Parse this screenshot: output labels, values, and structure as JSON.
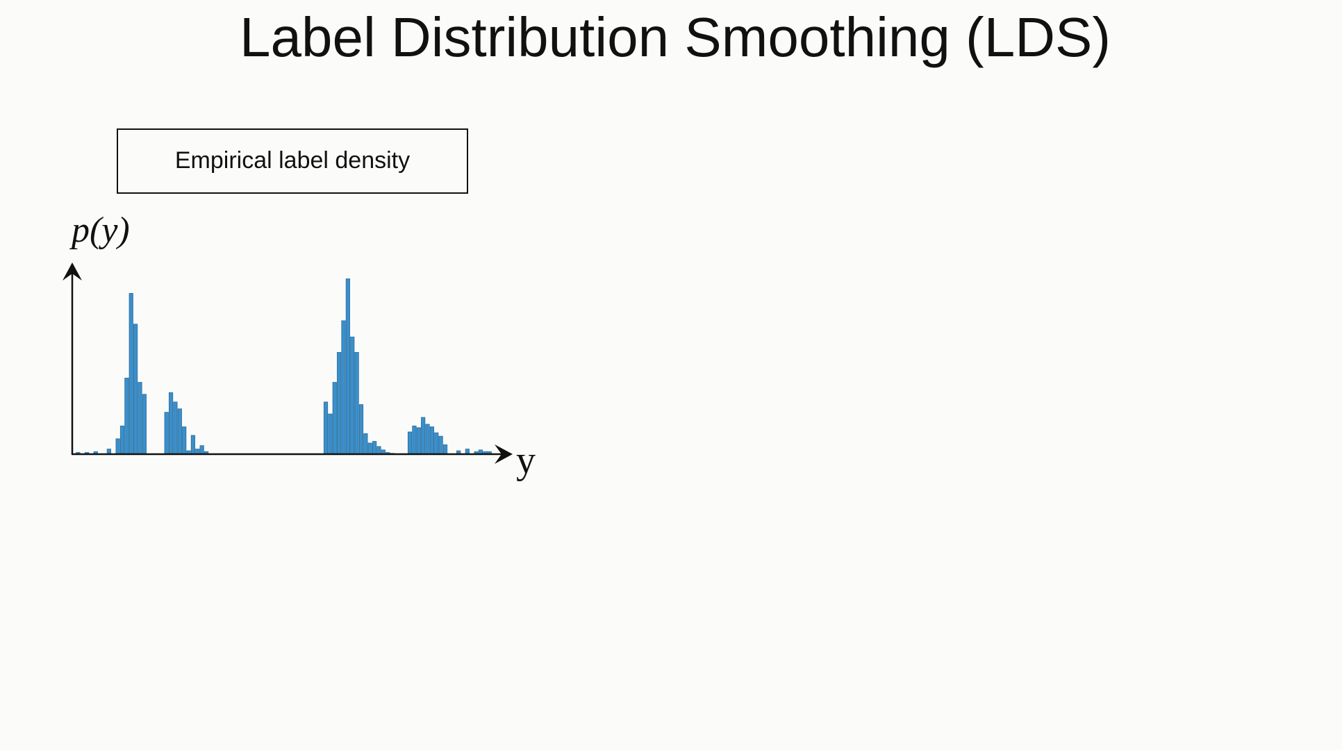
{
  "chart_data": {
    "type": "bar",
    "title": "Label Distribution Smoothing (LDS)",
    "subtitle": "Empirical label density",
    "y_label": "p(y)",
    "x_label": "y",
    "color": "#3b8fca",
    "ylim": [
      0,
      223
    ],
    "categories": [
      null,
      null,
      null,
      null,
      null,
      null,
      null,
      null,
      null,
      null,
      null,
      null,
      null,
      null,
      null,
      null,
      null,
      null,
      null,
      null,
      null,
      null,
      null,
      null,
      null,
      null,
      null,
      null,
      null,
      null,
      null,
      null,
      null,
      null,
      null,
      null,
      null,
      null,
      null,
      null,
      null,
      null,
      null,
      null,
      null,
      null,
      null,
      null,
      null,
      null,
      null,
      null,
      null,
      null,
      null,
      null,
      null,
      null,
      null,
      null,
      null,
      null,
      null,
      null,
      null,
      null,
      null,
      null,
      null,
      null,
      null,
      null,
      null,
      null,
      null,
      null,
      null,
      null,
      null,
      null,
      null,
      null,
      null,
      null,
      null,
      null,
      null,
      null,
      null,
      null,
      null,
      null,
      null,
      null,
      null
    ],
    "values": [
      2,
      0,
      2,
      0,
      3,
      0,
      0,
      6,
      0,
      18,
      33,
      89,
      188,
      152,
      84,
      70,
      0,
      0,
      0,
      0,
      49,
      72,
      61,
      53,
      32,
      4,
      22,
      6,
      10,
      3,
      0,
      0,
      0,
      0,
      0,
      0,
      0,
      0,
      0,
      0,
      0,
      0,
      0,
      0,
      0,
      0,
      0,
      0,
      0,
      0,
      0,
      0,
      0,
      0,
      0,
      0,
      61,
      47,
      84,
      119,
      156,
      205,
      137,
      119,
      58,
      24,
      13,
      15,
      9,
      5,
      2,
      1,
      0,
      0,
      0,
      26,
      33,
      31,
      43,
      35,
      32,
      25,
      21,
      11,
      0,
      0,
      4,
      0,
      6,
      0,
      3,
      5,
      3,
      3,
      0
    ]
  }
}
